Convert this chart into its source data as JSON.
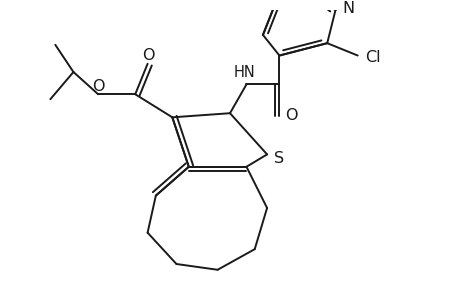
{
  "bg_color": "#ffffff",
  "line_color": "#1a1a1a",
  "line_width": 1.4,
  "font_size": 10.5,
  "figsize": [
    4.6,
    3.0
  ],
  "dpi": 100,
  "xlim": [
    0.0,
    5.2
  ],
  "ylim": [
    0.3,
    3.8
  ]
}
